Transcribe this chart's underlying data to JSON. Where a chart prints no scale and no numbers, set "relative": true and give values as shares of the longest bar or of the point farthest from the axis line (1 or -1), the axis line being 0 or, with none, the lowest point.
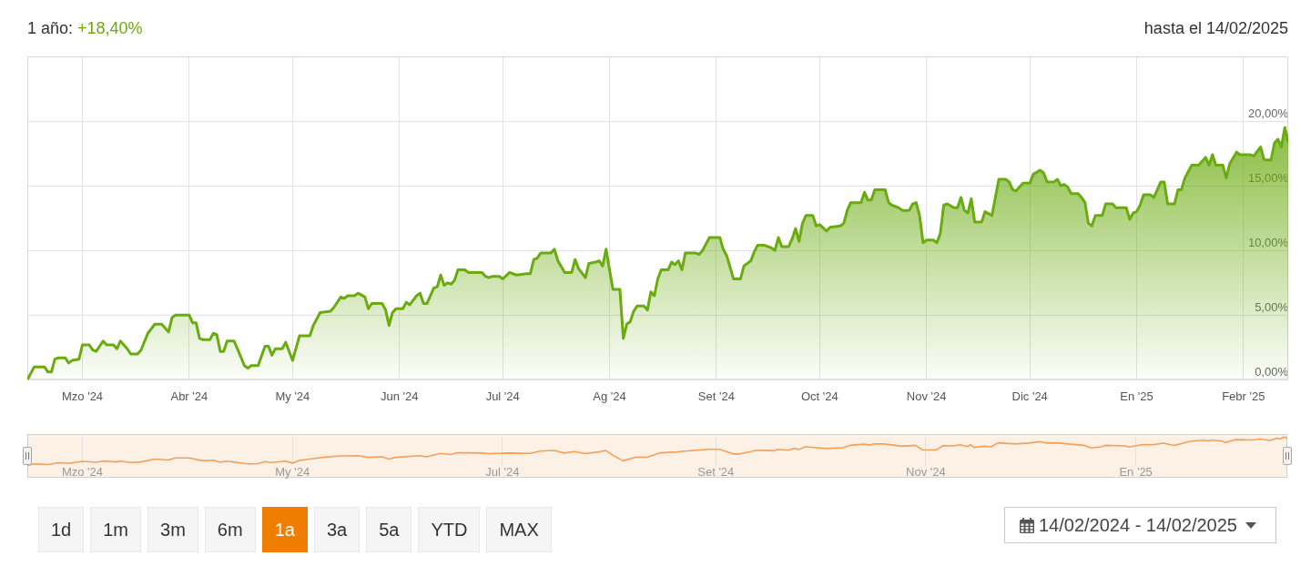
{
  "chart_data": [
    {
      "type": "area",
      "title": "1 año: +18,40%",
      "subtitle": "hasta el 14/02/2025",
      "x": [
        "2024-02-14",
        "2024-02-16",
        "2024-02-19",
        "2024-02-20",
        "2024-02-21",
        "2024-02-22",
        "2024-02-23",
        "2024-02-25",
        "2024-02-26",
        "2024-02-27",
        "2024-02-29",
        "2024-03-01",
        "2024-03-03",
        "2024-03-04",
        "2024-03-05",
        "2024-03-07",
        "2024-03-08",
        "2024-03-10",
        "2024-03-11",
        "2024-03-12",
        "2024-03-14",
        "2024-03-15",
        "2024-03-17",
        "2024-03-18",
        "2024-03-20",
        "2024-03-22",
        "2024-03-24",
        "2024-03-26",
        "2024-03-27",
        "2024-03-28",
        "2024-04-01",
        "2024-04-02",
        "2024-04-03",
        "2024-04-04",
        "2024-04-05",
        "2024-04-07",
        "2024-04-08",
        "2024-04-09",
        "2024-04-10",
        "2024-04-11",
        "2024-04-12",
        "2024-04-14",
        "2024-04-15",
        "2024-04-17",
        "2024-04-18",
        "2024-04-19",
        "2024-04-21",
        "2024-04-23",
        "2024-04-24",
        "2024-04-25",
        "2024-04-26",
        "2024-04-28",
        "2024-04-29",
        "2024-05-01",
        "2024-05-03",
        "2024-05-06",
        "2024-05-07",
        "2024-05-09",
        "2024-05-12",
        "2024-05-13",
        "2024-05-15",
        "2024-05-16",
        "2024-05-17",
        "2024-05-19",
        "2024-05-20",
        "2024-05-22",
        "2024-05-23",
        "2024-05-24",
        "2024-05-27",
        "2024-05-28",
        "2024-05-29",
        "2024-05-30",
        "2024-05-31",
        "2024-06-02",
        "2024-06-03",
        "2024-06-04",
        "2024-06-06",
        "2024-06-07",
        "2024-06-08",
        "2024-06-09",
        "2024-06-11",
        "2024-06-12",
        "2024-06-13",
        "2024-06-14",
        "2024-06-15",
        "2024-06-16",
        "2024-06-17",
        "2024-06-18",
        "2024-06-20",
        "2024-06-21",
        "2024-06-25",
        "2024-06-26",
        "2024-06-27",
        "2024-06-28",
        "2024-06-30",
        "2024-07-01",
        "2024-07-03",
        "2024-07-05",
        "2024-07-08",
        "2024-07-09",
        "2024-07-10",
        "2024-07-11",
        "2024-07-12",
        "2024-07-15",
        "2024-07-16",
        "2024-07-17",
        "2024-07-19",
        "2024-07-21",
        "2024-07-22",
        "2024-07-23",
        "2024-07-25",
        "2024-07-26",
        "2024-07-28",
        "2024-07-29",
        "2024-07-30",
        "2024-07-31",
        "2024-08-01",
        "2024-08-02",
        "2024-08-04",
        "2024-08-05",
        "2024-08-06",
        "2024-08-07",
        "2024-08-08",
        "2024-08-09",
        "2024-08-11",
        "2024-08-12",
        "2024-08-13",
        "2024-08-14",
        "2024-08-15",
        "2024-08-16",
        "2024-08-18",
        "2024-08-19",
        "2024-08-20",
        "2024-08-21",
        "2024-08-22",
        "2024-08-23",
        "2024-08-26",
        "2024-08-27",
        "2024-08-28",
        "2024-08-30",
        "2024-09-02",
        "2024-09-03",
        "2024-09-04",
        "2024-09-06",
        "2024-09-08",
        "2024-09-09",
        "2024-09-11",
        "2024-09-12",
        "2024-09-13",
        "2024-09-15",
        "2024-09-17",
        "2024-09-18",
        "2024-09-19",
        "2024-09-20",
        "2024-09-22",
        "2024-09-23",
        "2024-09-24",
        "2024-09-25",
        "2024-09-26",
        "2024-09-27",
        "2024-09-29",
        "2024-09-30",
        "2024-10-01",
        "2024-10-03",
        "2024-10-04",
        "2024-10-07",
        "2024-10-08",
        "2024-10-09",
        "2024-10-10",
        "2024-10-13",
        "2024-10-14",
        "2024-10-15",
        "2024-10-16",
        "2024-10-17",
        "2024-10-20",
        "2024-10-21",
        "2024-10-22",
        "2024-10-24",
        "2024-10-25",
        "2024-10-27",
        "2024-10-28",
        "2024-10-29",
        "2024-10-30",
        "2024-10-31",
        "2024-11-01",
        "2024-11-03",
        "2024-11-04",
        "2024-11-05",
        "2024-11-06",
        "2024-11-07",
        "2024-11-09",
        "2024-11-10",
        "2024-11-11",
        "2024-11-12",
        "2024-11-13",
        "2024-11-14",
        "2024-11-15",
        "2024-11-17",
        "2024-11-18",
        "2024-11-20",
        "2024-11-22",
        "2024-11-24",
        "2024-11-25",
        "2024-11-26",
        "2024-11-27",
        "2024-11-29",
        "2024-12-01",
        "2024-12-02",
        "2024-12-04",
        "2024-12-05",
        "2024-12-06",
        "2024-12-08",
        "2024-12-09",
        "2024-12-10",
        "2024-12-11",
        "2024-12-12",
        "2024-12-13",
        "2024-12-15",
        "2024-12-16",
        "2024-12-17",
        "2024-12-18",
        "2024-12-19",
        "2024-12-20",
        "2024-12-22",
        "2024-12-23",
        "2024-12-25",
        "2024-12-26",
        "2024-12-29",
        "2024-12-30",
        "2024-12-31",
        "2025-01-01",
        "2025-01-02",
        "2025-01-03",
        "2025-01-05",
        "2025-01-06",
        "2025-01-08",
        "2025-01-09",
        "2025-01-10",
        "2025-01-12",
        "2025-01-13",
        "2025-01-14",
        "2025-01-15",
        "2025-01-17",
        "2025-01-19",
        "2025-01-21",
        "2025-01-22",
        "2025-01-23",
        "2025-01-24",
        "2025-01-26",
        "2025-01-27",
        "2025-01-28",
        "2025-01-30",
        "2025-01-31",
        "2025-02-03",
        "2025-02-04",
        "2025-02-06",
        "2025-02-07",
        "2025-02-09",
        "2025-02-10",
        "2025-02-11",
        "2025-02-12",
        "2025-02-13",
        "2025-02-14"
      ],
      "values": [
        0,
        1.0,
        1.0,
        0.6,
        0.6,
        1.6,
        1.7,
        1.7,
        1.3,
        1.5,
        1.6,
        2.7,
        2.7,
        2.3,
        2.2,
        3.0,
        2.7,
        2.7,
        2.4,
        3.0,
        2.4,
        2.0,
        2.0,
        2.3,
        3.6,
        4.3,
        4.3,
        3.7,
        4.8,
        5.0,
        5.0,
        4.4,
        4.4,
        3.2,
        3.1,
        3.1,
        3.6,
        3.5,
        2.2,
        2.2,
        3.0,
        3.0,
        2.4,
        1.1,
        0.9,
        1.1,
        1.1,
        2.6,
        2.6,
        1.9,
        2.4,
        2.4,
        2.9,
        1.5,
        3.4,
        3.4,
        4.2,
        5.2,
        5.3,
        5.6,
        6.4,
        6.3,
        6.5,
        6.5,
        6.7,
        6.4,
        5.5,
        5.9,
        5.9,
        5.4,
        4.2,
        5.2,
        5.5,
        5.5,
        6.0,
        5.8,
        6.5,
        6.7,
        5.9,
        5.9,
        7.1,
        7.2,
        8.1,
        7.3,
        7.5,
        7.4,
        7.7,
        8.5,
        8.5,
        8.3,
        8.3,
        8.0,
        7.9,
        8.0,
        8.0,
        7.8,
        8.3,
        8.1,
        8.2,
        8.2,
        9.3,
        9.4,
        9.8,
        9.8,
        10.1,
        9.2,
        8.3,
        8.3,
        9.3,
        8.6,
        7.9,
        9.0,
        9.1,
        9.2,
        8.8,
        10.1,
        8.5,
        7.0,
        7.0,
        3.2,
        4.3,
        4.5,
        5.3,
        5.7,
        5.7,
        5.4,
        6.8,
        6.5,
        7.8,
        8.5,
        8.5,
        9.1,
        8.9,
        9.2,
        8.5,
        9.8,
        9.8,
        9.7,
        10.0,
        11.0,
        11.0,
        10.1,
        9.6,
        7.8,
        7.8,
        8.8,
        9.2,
        9.9,
        10.4,
        10.4,
        10.2,
        10.0,
        11.0,
        10.3,
        10.3,
        10.9,
        11.7,
        10.7,
        12.1,
        12.7,
        12.7,
        11.9,
        12.0,
        11.5,
        11.8,
        11.9,
        12.1,
        13.1,
        13.7,
        13.7,
        14.5,
        13.9,
        13.9,
        14.7,
        14.7,
        13.7,
        13.5,
        13.3,
        13.1,
        13.1,
        13.6,
        13.7,
        12.7,
        10.6,
        10.8,
        10.8,
        10.6,
        11.3,
        13.5,
        13.6,
        13.3,
        13.3,
        14.1,
        13.1,
        12.9,
        14.0,
        12.2,
        12.2,
        13.0,
        12.7,
        15.5,
        15.5,
        15.3,
        14.7,
        14.6,
        15.2,
        15.2,
        15.9,
        16.2,
        16.0,
        15.3,
        15.3,
        15.5,
        15.0,
        15.1,
        14.9,
        14.4,
        14.4,
        14.1,
        13.7,
        12.1,
        11.9,
        12.7,
        12.7,
        13.6,
        13.6,
        13.3,
        13.3,
        12.4,
        12.9,
        13.0,
        13.5,
        14.3,
        14.3,
        14.1,
        15.3,
        15.3,
        13.6,
        13.6,
        14.7,
        14.7,
        15.6,
        16.6,
        16.6,
        17.2,
        16.6,
        17.4,
        16.6,
        16.6,
        15.6,
        16.7,
        17.6,
        17.4,
        17.4,
        17.3,
        18.0,
        17.0,
        17.0,
        18.3,
        18.6,
        18.0,
        19.5,
        18.4
      ],
      "color": "#6aab0f",
      "xlim": [
        "2024-02-14",
        "2025-02-14"
      ],
      "xticks": [
        {
          "value": "2024-03-01",
          "label": "Mzo '24"
        },
        {
          "value": "2024-04-01",
          "label": "Abr '24"
        },
        {
          "value": "2024-05-01",
          "label": "My '24"
        },
        {
          "value": "2024-06-01",
          "label": "Jun '24"
        },
        {
          "value": "2024-07-01",
          "label": "Jul '24"
        },
        {
          "value": "2024-08-01",
          "label": "Ag '24"
        },
        {
          "value": "2024-09-01",
          "label": "Set '24"
        },
        {
          "value": "2024-10-01",
          "label": "Oct '24"
        },
        {
          "value": "2024-11-01",
          "label": "Nov '24"
        },
        {
          "value": "2024-12-01",
          "label": "Dic '24"
        },
        {
          "value": "2025-01-01",
          "label": "En '25"
        },
        {
          "value": "2025-02-01",
          "label": "Febr '25"
        }
      ],
      "ylim": [
        0,
        25
      ],
      "yticks": [
        {
          "value": 0,
          "label": "0,00%"
        },
        {
          "value": 5,
          "label": "5,00%"
        },
        {
          "value": 10,
          "label": "10,00%"
        },
        {
          "value": 15,
          "label": "15,00%"
        },
        {
          "value": 20,
          "label": "20,00%"
        }
      ],
      "grid": true
    },
    {
      "type": "line",
      "relative": true,
      "x": [
        "2024-02-14",
        "2024-02-16",
        "2024-02-20",
        "2024-02-23",
        "2024-02-26",
        "2024-03-01",
        "2024-03-05",
        "2024-03-07",
        "2024-03-11",
        "2024-03-12",
        "2024-03-15",
        "2024-03-18",
        "2024-03-22",
        "2024-03-26",
        "2024-03-28",
        "2024-04-01",
        "2024-04-05",
        "2024-04-08",
        "2024-04-10",
        "2024-04-12",
        "2024-04-18",
        "2024-04-21",
        "2024-04-23",
        "2024-04-25",
        "2024-04-29",
        "2024-05-01",
        "2024-05-03",
        "2024-05-09",
        "2024-05-15",
        "2024-05-20",
        "2024-05-23",
        "2024-05-27",
        "2024-05-29",
        "2024-05-31",
        "2024-06-07",
        "2024-06-09",
        "2024-06-13",
        "2024-06-16",
        "2024-06-18",
        "2024-06-25",
        "2024-06-27",
        "2024-07-03",
        "2024-07-09",
        "2024-07-12",
        "2024-07-16",
        "2024-07-19",
        "2024-07-22",
        "2024-07-25",
        "2024-07-29",
        "2024-07-31",
        "2024-08-02",
        "2024-08-05",
        "2024-08-09",
        "2024-08-12",
        "2024-08-16",
        "2024-08-21",
        "2024-08-23",
        "2024-08-30",
        "2024-09-02",
        "2024-09-06",
        "2024-09-08",
        "2024-09-13",
        "2024-09-18",
        "2024-09-19",
        "2024-09-22",
        "2024-09-24",
        "2024-09-25",
        "2024-09-27",
        "2024-10-03",
        "2024-10-08",
        "2024-10-10",
        "2024-10-14",
        "2024-10-16",
        "2024-10-17",
        "2024-10-20",
        "2024-10-25",
        "2024-10-29",
        "2024-10-31",
        "2024-11-04",
        "2024-11-06",
        "2024-11-09",
        "2024-11-11",
        "2024-11-13",
        "2024-11-14",
        "2024-11-15",
        "2024-11-18",
        "2024-11-20",
        "2024-11-22",
        "2024-11-27",
        "2024-12-01",
        "2024-12-04",
        "2024-12-06",
        "2024-12-09",
        "2024-12-13",
        "2024-12-17",
        "2024-12-19",
        "2024-12-22",
        "2024-12-23",
        "2024-12-29",
        "2024-12-30",
        "2025-01-03",
        "2025-01-06",
        "2025-01-09",
        "2025-01-12",
        "2025-01-14",
        "2025-01-17",
        "2025-01-21",
        "2025-01-22",
        "2025-01-23",
        "2025-01-26",
        "2025-01-27",
        "2025-01-30",
        "2025-02-04",
        "2025-02-06",
        "2025-02-09",
        "2025-02-11",
        "2025-02-12",
        "2025-02-13",
        "2025-02-14"
      ],
      "values": [
        0,
        0.05,
        0.03,
        0.09,
        0.07,
        0.14,
        0.11,
        0.15,
        0.12,
        0.15,
        0.1,
        0.12,
        0.22,
        0.19,
        0.26,
        0.26,
        0.16,
        0.18,
        0.11,
        0.15,
        0.05,
        0.06,
        0.13,
        0.1,
        0.15,
        0.08,
        0.17,
        0.27,
        0.33,
        0.34,
        0.28,
        0.3,
        0.22,
        0.28,
        0.34,
        0.3,
        0.42,
        0.38,
        0.44,
        0.43,
        0.41,
        0.43,
        0.42,
        0.5,
        0.52,
        0.43,
        0.48,
        0.41,
        0.47,
        0.52,
        0.36,
        0.16,
        0.29,
        0.28,
        0.44,
        0.47,
        0.5,
        0.56,
        0.56,
        0.4,
        0.4,
        0.53,
        0.51,
        0.56,
        0.53,
        0.6,
        0.55,
        0.65,
        0.59,
        0.62,
        0.7,
        0.74,
        0.71,
        0.75,
        0.75,
        0.67,
        0.7,
        0.54,
        0.54,
        0.69,
        0.68,
        0.72,
        0.66,
        0.72,
        0.63,
        0.67,
        0.65,
        0.79,
        0.75,
        0.78,
        0.83,
        0.78,
        0.79,
        0.74,
        0.7,
        0.61,
        0.65,
        0.7,
        0.68,
        0.64,
        0.73,
        0.72,
        0.78,
        0.7,
        0.75,
        0.85,
        0.88,
        0.85,
        0.89,
        0.85,
        0.8,
        0.9,
        0.89,
        0.92,
        0.87,
        0.95,
        0.92,
        1,
        0.94
      ],
      "color": "#f3a05b",
      "xlim": [
        "2024-02-14",
        "2025-02-14"
      ],
      "xticks": [
        {
          "value": "2024-03-01",
          "label": "Mzo '24"
        },
        {
          "value": "2024-05-01",
          "label": "My '24"
        },
        {
          "value": "2024-07-01",
          "label": "Jul '24"
        },
        {
          "value": "2024-09-01",
          "label": "Set '24"
        },
        {
          "value": "2024-11-01",
          "label": "Nov '24"
        },
        {
          "value": "2025-01-01",
          "label": "En '25"
        }
      ],
      "grid": "x"
    },
    {
      "type": "other",
      "annotations": [
        "1d",
        "1m",
        "3m",
        "6m",
        "1a",
        "3a",
        "5a",
        "YTD",
        "MAX",
        "14/02/2024 - 14/02/2025"
      ],
      "colors": [
        "#f5f5f5",
        "#f5f5f5",
        "#f5f5f5",
        "#f5f5f5",
        "#ef7d00",
        "#f5f5f5",
        "#f5f5f5",
        "#f5f5f5",
        "#f5f5f5",
        "#ffffff"
      ]
    }
  ]
}
